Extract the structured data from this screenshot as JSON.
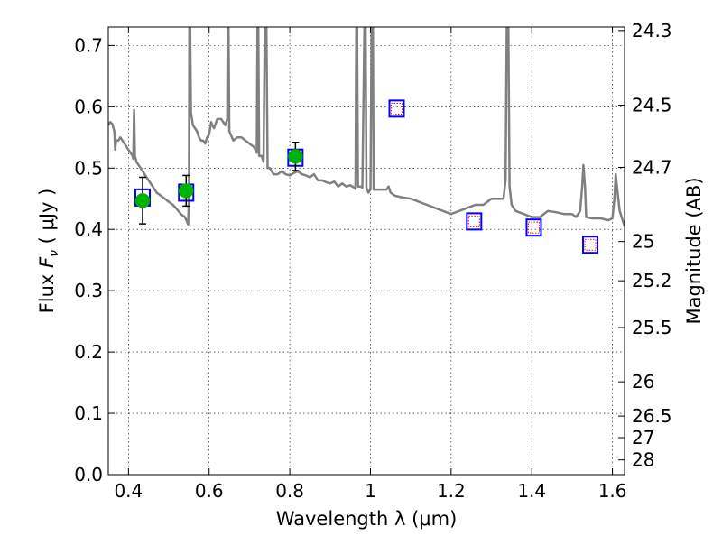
{
  "chart_data": {
    "type": "scatter",
    "title": "",
    "xlabel": "Wavelength  λ (μm)",
    "ylabel_prefix": "Flux  ",
    "ylabel_symbol": "F",
    "ylabel_subscript": "ν",
    "ylabel_suffix": "  ( μJy )",
    "y2label": "Magnitude (AB)",
    "xlim": [
      0.35,
      1.63
    ],
    "ylim": [
      0.0,
      0.73
    ],
    "grid": true,
    "x_ticks": [
      {
        "value": 0.4,
        "label": "0.4"
      },
      {
        "value": 0.6,
        "label": "0.6"
      },
      {
        "value": 0.8,
        "label": "0.8"
      },
      {
        "value": 1.0,
        "label": "1"
      },
      {
        "value": 1.2,
        "label": "1.2"
      },
      {
        "value": 1.4,
        "label": "1.4"
      },
      {
        "value": 1.6,
        "label": "1.6"
      }
    ],
    "y_ticks": [
      {
        "value": 0.0,
        "label": "0.0"
      },
      {
        "value": 0.1,
        "label": "0.1"
      },
      {
        "value": 0.2,
        "label": "0.2"
      },
      {
        "value": 0.3,
        "label": "0.3"
      },
      {
        "value": 0.4,
        "label": "0.4"
      },
      {
        "value": 0.5,
        "label": "0.5"
      },
      {
        "value": 0.6,
        "label": "0.6"
      },
      {
        "value": 0.7,
        "label": "0.7"
      }
    ],
    "mag_ticks": [
      {
        "label": "24.3",
        "flux": 0.7244
      },
      {
        "label": "24.5",
        "flux": 0.6026
      },
      {
        "label": "24.7",
        "flux": 0.5012
      },
      {
        "label": "25",
        "flux": 0.3802
      },
      {
        "label": "25.2",
        "flux": 0.3162
      },
      {
        "label": "25.5",
        "flux": 0.2399
      },
      {
        "label": "26",
        "flux": 0.1514
      },
      {
        "label": "26.5",
        "flux": 0.0955
      },
      {
        "label": "27",
        "flux": 0.0603
      },
      {
        "label": "28",
        "flux": 0.024
      }
    ],
    "series": [
      {
        "name": "observed",
        "marker": "circle",
        "color": "#00b200",
        "points": [
          {
            "x": 0.435,
            "y": 0.447,
            "yerr": 0.038
          },
          {
            "x": 0.543,
            "y": 0.463,
            "yerr": 0.025
          },
          {
            "x": 0.814,
            "y": 0.519,
            "yerr": 0.023
          }
        ]
      },
      {
        "name": "model-photometry",
        "marker": "square",
        "color": "#0000ff",
        "points": [
          {
            "x": 0.435,
            "y": 0.452
          },
          {
            "x": 0.543,
            "y": 0.46
          },
          {
            "x": 0.814,
            "y": 0.517
          },
          {
            "x": 1.065,
            "y": 0.597
          },
          {
            "x": 1.257,
            "y": 0.413
          },
          {
            "x": 1.405,
            "y": 0.403
          },
          {
            "x": 1.545,
            "y": 0.375
          }
        ]
      },
      {
        "name": "upper-limit-dotted",
        "marker": "dotted-square",
        "color": "#ff0000",
        "points": [
          {
            "x": 1.065,
            "y": 0.597
          },
          {
            "x": 1.257,
            "y": 0.413
          },
          {
            "x": 1.405,
            "y": 0.403
          },
          {
            "x": 1.545,
            "y": 0.375
          }
        ]
      }
    ],
    "spectrum": {
      "name": "template-spectrum",
      "color": "#808080",
      "points": [
        [
          0.35,
          0.57
        ],
        [
          0.355,
          0.575
        ],
        [
          0.36,
          0.572
        ],
        [
          0.365,
          0.56
        ],
        [
          0.367,
          0.53
        ],
        [
          0.369,
          0.545
        ],
        [
          0.375,
          0.545
        ],
        [
          0.38,
          0.55
        ],
        [
          0.385,
          0.545
        ],
        [
          0.39,
          0.54
        ],
        [
          0.395,
          0.535
        ],
        [
          0.4,
          0.53
        ],
        [
          0.405,
          0.525
        ],
        [
          0.41,
          0.52
        ],
        [
          0.412,
          0.515
        ],
        [
          0.414,
          0.595
        ],
        [
          0.416,
          0.52
        ],
        [
          0.42,
          0.51
        ],
        [
          0.43,
          0.5
        ],
        [
          0.44,
          0.49
        ],
        [
          0.45,
          0.48
        ],
        [
          0.46,
          0.47
        ],
        [
          0.47,
          0.46
        ],
        [
          0.48,
          0.455
        ],
        [
          0.49,
          0.45
        ],
        [
          0.5,
          0.445
        ],
        [
          0.51,
          0.44
        ],
        [
          0.52,
          0.433
        ],
        [
          0.53,
          0.425
        ],
        [
          0.54,
          0.42
        ],
        [
          0.545,
          0.413
        ],
        [
          0.548,
          0.408
        ],
        [
          0.55,
          0.46
        ],
        [
          0.551,
          0.73
        ],
        [
          0.553,
          0.73
        ],
        [
          0.555,
          0.59
        ],
        [
          0.56,
          0.57
        ],
        [
          0.57,
          0.56
        ],
        [
          0.575,
          0.55
        ],
        [
          0.58,
          0.545
        ],
        [
          0.585,
          0.545
        ],
        [
          0.59,
          0.54
        ],
        [
          0.595,
          0.55
        ],
        [
          0.6,
          0.555
        ],
        [
          0.605,
          0.575
        ],
        [
          0.608,
          0.57
        ],
        [
          0.612,
          0.565
        ],
        [
          0.62,
          0.58
        ],
        [
          0.63,
          0.58
        ],
        [
          0.64,
          0.57
        ],
        [
          0.645,
          0.58
        ],
        [
          0.646,
          0.73
        ],
        [
          0.648,
          0.73
        ],
        [
          0.65,
          0.56
        ],
        [
          0.66,
          0.545
        ],
        [
          0.67,
          0.55
        ],
        [
          0.68,
          0.55
        ],
        [
          0.69,
          0.545
        ],
        [
          0.7,
          0.54
        ],
        [
          0.71,
          0.535
        ],
        [
          0.715,
          0.53
        ],
        [
          0.718,
          0.525
        ],
        [
          0.72,
          0.73
        ],
        [
          0.722,
          0.73
        ],
        [
          0.724,
          0.52
        ],
        [
          0.73,
          0.52
        ],
        [
          0.735,
          0.51
        ],
        [
          0.738,
          0.73
        ],
        [
          0.742,
          0.73
        ],
        [
          0.745,
          0.5
        ],
        [
          0.75,
          0.5
        ],
        [
          0.76,
          0.49
        ],
        [
          0.77,
          0.49
        ],
        [
          0.78,
          0.495
        ],
        [
          0.79,
          0.49
        ],
        [
          0.8,
          0.488
        ],
        [
          0.81,
          0.492
        ],
        [
          0.82,
          0.495
        ],
        [
          0.83,
          0.49
        ],
        [
          0.84,
          0.488
        ],
        [
          0.85,
          0.485
        ],
        [
          0.86,
          0.49
        ],
        [
          0.87,
          0.48
        ],
        [
          0.88,
          0.48
        ],
        [
          0.89,
          0.477
        ],
        [
          0.9,
          0.475
        ],
        [
          0.91,
          0.478
        ],
        [
          0.92,
          0.47
        ],
        [
          0.93,
          0.475
        ],
        [
          0.94,
          0.47
        ],
        [
          0.95,
          0.472
        ],
        [
          0.96,
          0.468
        ],
        [
          0.963,
          0.466
        ],
        [
          0.965,
          0.73
        ],
        [
          0.967,
          0.73
        ],
        [
          0.969,
          0.47
        ],
        [
          0.975,
          0.47
        ],
        [
          0.98,
          0.468
        ],
        [
          0.985,
          0.73
        ],
        [
          0.988,
          0.73
        ],
        [
          0.99,
          0.468
        ],
        [
          0.995,
          0.46
        ],
        [
          1.0,
          0.465
        ],
        [
          1.003,
          0.73
        ],
        [
          1.006,
          0.73
        ],
        [
          1.008,
          0.465
        ],
        [
          1.02,
          0.465
        ],
        [
          1.03,
          0.465
        ],
        [
          1.04,
          0.465
        ],
        [
          1.045,
          0.47
        ],
        [
          1.05,
          0.46
        ],
        [
          1.06,
          0.455
        ],
        [
          1.08,
          0.452
        ],
        [
          1.1,
          0.45
        ],
        [
          1.12,
          0.445
        ],
        [
          1.14,
          0.44
        ],
        [
          1.16,
          0.435
        ],
        [
          1.18,
          0.43
        ],
        [
          1.2,
          0.425
        ],
        [
          1.22,
          0.43
        ],
        [
          1.24,
          0.435
        ],
        [
          1.26,
          0.44
        ],
        [
          1.28,
          0.44
        ],
        [
          1.3,
          0.45
        ],
        [
          1.32,
          0.45
        ],
        [
          1.33,
          0.45
        ],
        [
          1.335,
          0.48
        ],
        [
          1.338,
          0.73
        ],
        [
          1.342,
          0.73
        ],
        [
          1.345,
          0.47
        ],
        [
          1.35,
          0.44
        ],
        [
          1.36,
          0.43
        ],
        [
          1.38,
          0.425
        ],
        [
          1.4,
          0.42
        ],
        [
          1.42,
          0.42
        ],
        [
          1.44,
          0.43
        ],
        [
          1.46,
          0.428
        ],
        [
          1.48,
          0.425
        ],
        [
          1.5,
          0.425
        ],
        [
          1.51,
          0.42
        ],
        [
          1.52,
          0.43
        ],
        [
          1.525,
          0.47
        ],
        [
          1.528,
          0.505
        ],
        [
          1.532,
          0.47
        ],
        [
          1.535,
          0.42
        ],
        [
          1.55,
          0.418
        ],
        [
          1.57,
          0.418
        ],
        [
          1.59,
          0.415
        ],
        [
          1.6,
          0.418
        ],
        [
          1.605,
          0.45
        ],
        [
          1.608,
          0.49
        ],
        [
          1.612,
          0.465
        ],
        [
          1.618,
          0.43
        ],
        [
          1.625,
          0.415
        ],
        [
          1.63,
          0.405
        ]
      ]
    }
  }
}
